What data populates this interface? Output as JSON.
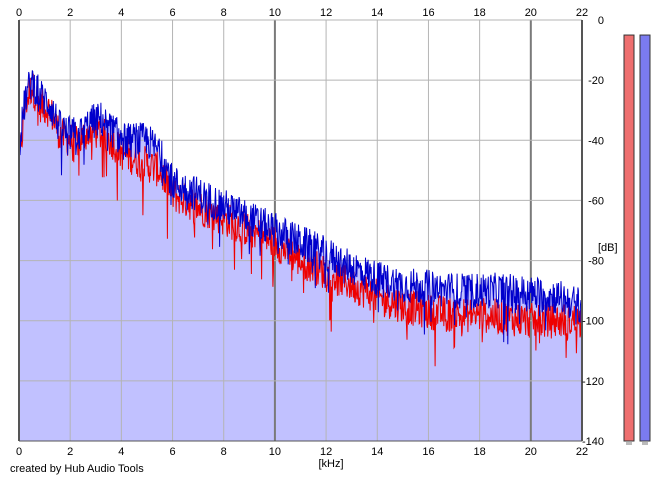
{
  "credit": "created by Hub Audio Tools",
  "chart_data": {
    "type": "area",
    "xlabel": "[kHz]",
    "ylabel": "[dB]",
    "xlim": [
      0,
      22
    ],
    "ylim": [
      -140,
      0
    ],
    "x_ticks": [
      0,
      2,
      4,
      6,
      8,
      10,
      12,
      14,
      16,
      18,
      20,
      22
    ],
    "y_ticks": [
      0,
      -20,
      -40,
      -60,
      -80,
      -100,
      -120,
      -140
    ],
    "grid": true,
    "x_unit": "kHz",
    "y_unit": "dB",
    "series": [
      {
        "color": "#ee0000",
        "x": [
          0,
          0.25,
          0.5,
          0.8,
          1.2,
          1.6,
          2.0,
          2.4,
          2.8,
          3.2,
          3.6,
          4.0,
          4.5,
          5.0,
          5.5,
          6.0,
          7.0,
          8.0,
          9.0,
          10.0,
          11.0,
          12.0,
          13.0,
          14.0,
          15.0,
          16.0,
          17.0,
          18.0,
          19.0,
          20.0,
          21.0,
          22.0
        ],
        "values": [
          -48,
          -28,
          -22,
          -28,
          -30,
          -38,
          -40,
          -40,
          -36,
          -38,
          -40,
          -44,
          -46,
          -48,
          -50,
          -58,
          -62,
          -66,
          -70,
          -74,
          -80,
          -84,
          -88,
          -92,
          -95,
          -97,
          -98,
          -98,
          -99,
          -100,
          -100,
          -100
        ]
      },
      {
        "color": "#0000cc",
        "x": [
          0,
          0.25,
          0.5,
          0.8,
          1.2,
          1.6,
          2.0,
          2.4,
          2.8,
          3.2,
          3.6,
          4.0,
          4.5,
          5.0,
          5.5,
          6.0,
          7.0,
          8.0,
          9.0,
          10.0,
          11.0,
          12.0,
          13.0,
          14.0,
          15.0,
          16.0,
          17.0,
          18.0,
          19.0,
          20.0,
          21.0,
          22.0
        ],
        "values": [
          -42,
          -26,
          -20,
          -25,
          -28,
          -36,
          -38,
          -38,
          -34,
          -33,
          -36,
          -40,
          -40,
          -40,
          -44,
          -54,
          -58,
          -62,
          -66,
          -70,
          -74,
          -78,
          -82,
          -86,
          -88,
          -89,
          -90,
          -90,
          -90,
          -91,
          -92,
          -95
        ]
      }
    ],
    "level_meters": [
      {
        "channel": "left",
        "color": "#ee6f6f",
        "level_db": -5
      },
      {
        "channel": "right",
        "color": "#7b7bf0",
        "level_db": -5
      }
    ],
    "fill_color": "#c1c1ff"
  }
}
